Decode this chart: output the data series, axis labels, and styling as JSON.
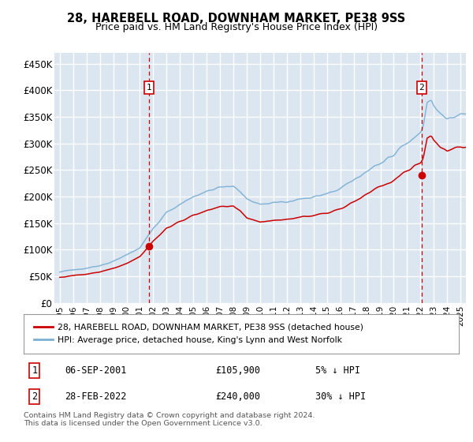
{
  "title": "28, HAREBELL ROAD, DOWNHAM MARKET, PE38 9SS",
  "subtitle": "Price paid vs. HM Land Registry's House Price Index (HPI)",
  "ylim": [
    0,
    470000
  ],
  "yticks": [
    0,
    50000,
    100000,
    150000,
    200000,
    250000,
    300000,
    350000,
    400000,
    450000
  ],
  "ytick_labels": [
    "£0",
    "£50K",
    "£100K",
    "£150K",
    "£200K",
    "£250K",
    "£300K",
    "£350K",
    "£400K",
    "£450K"
  ],
  "background_color": "#ffffff",
  "plot_bg_color": "#dce6f1",
  "grid_color": "#ffffff",
  "hpi_color": "#7bafd4",
  "price_color": "#cc0000",
  "dashed_color": "#cc0000",
  "sale1_price": 105900,
  "sale2_price": 240000,
  "legend_line1": "28, HAREBELL ROAD, DOWNHAM MARKET, PE38 9SS (detached house)",
  "legend_line2": "HPI: Average price, detached house, King's Lynn and West Norfolk",
  "note1_label": "1",
  "note1_date": "06-SEP-2001",
  "note1_price": "£105,900",
  "note1_pct": "5% ↓ HPI",
  "note2_label": "2",
  "note2_date": "28-FEB-2022",
  "note2_price": "£240,000",
  "note2_pct": "30% ↓ HPI",
  "footer": "Contains HM Land Registry data © Crown copyright and database right 2024.\nThis data is licensed under the Open Government Licence v3.0.",
  "x_start_year": 1995,
  "x_end_year": 2025
}
